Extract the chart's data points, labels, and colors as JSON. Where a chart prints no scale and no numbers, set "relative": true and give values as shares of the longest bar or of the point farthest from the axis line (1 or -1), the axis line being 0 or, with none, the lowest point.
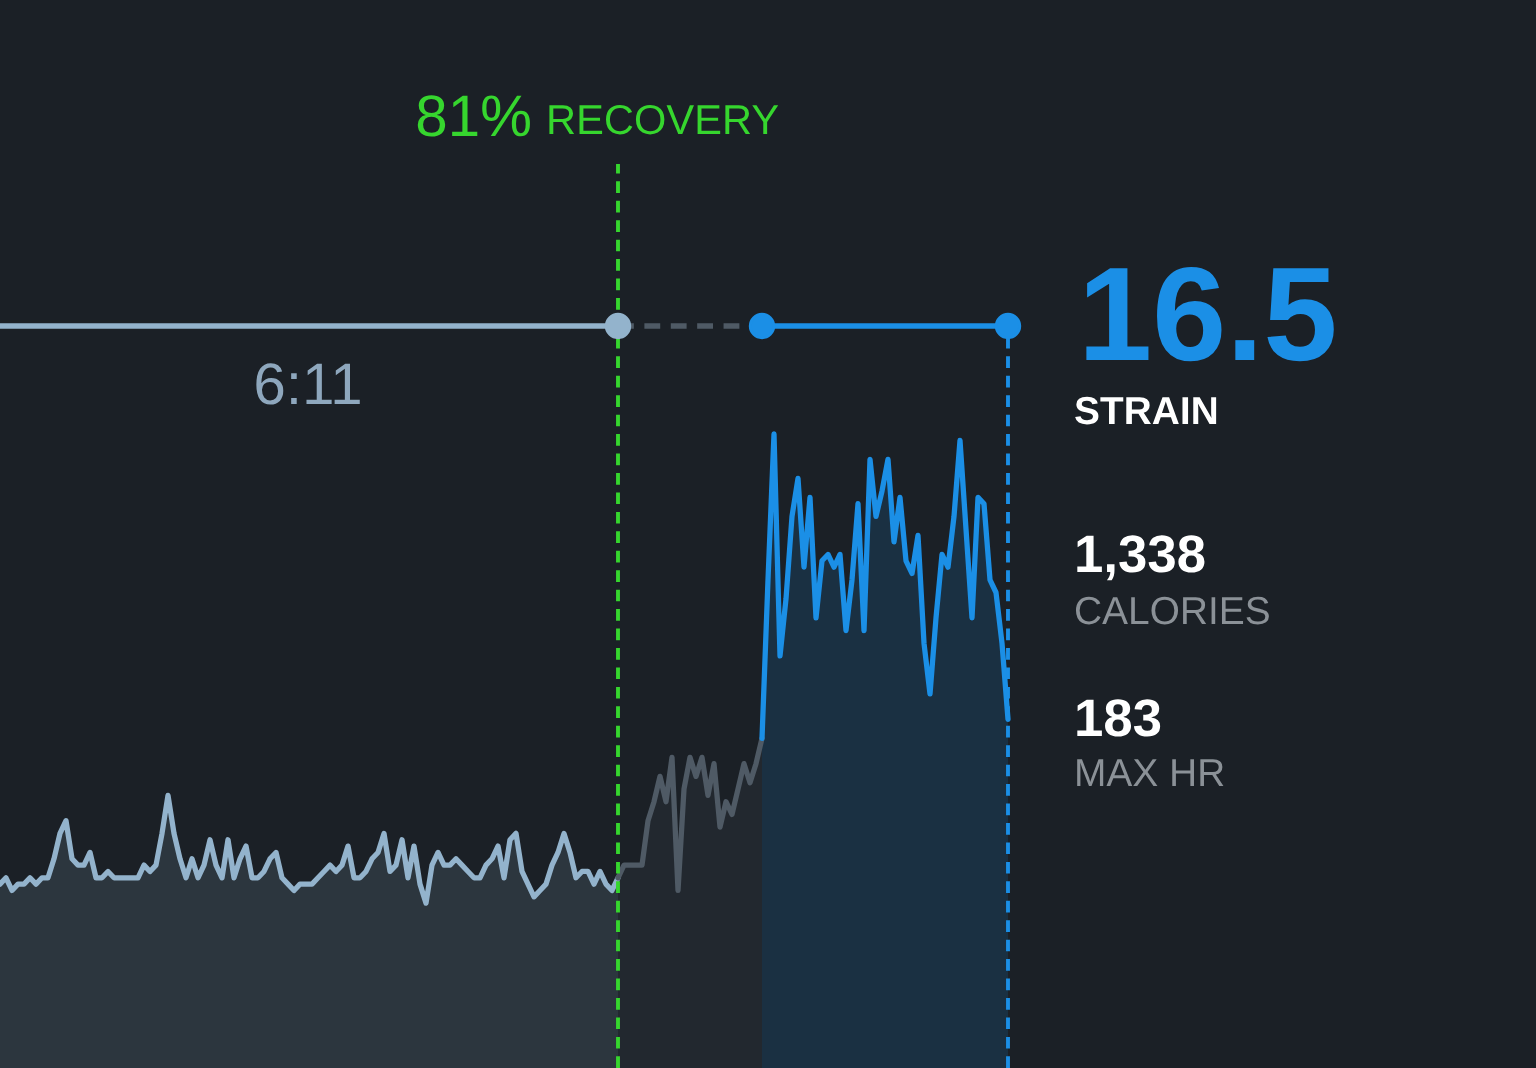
{
  "chart_data": {
    "type": "area",
    "relative": true,
    "categories": [
      null,
      null,
      null,
      null,
      null,
      null,
      null,
      null,
      null,
      null,
      null,
      null,
      null,
      null,
      null,
      null,
      null,
      null,
      null,
      null,
      null,
      null,
      null,
      null,
      null,
      null,
      null,
      null,
      null,
      null,
      null,
      null,
      null,
      null,
      null,
      null,
      null,
      null,
      null,
      null,
      null,
      null,
      null,
      null,
      null,
      null,
      null,
      null,
      null,
      null,
      null,
      null,
      null,
      null,
      null,
      null,
      null,
      null,
      null,
      null,
      null,
      null,
      null,
      null,
      null,
      null,
      null,
      null,
      null,
      null,
      null,
      null,
      null,
      null,
      null,
      null,
      null,
      null,
      null,
      null,
      null,
      null,
      null,
      null,
      null,
      null,
      null,
      null,
      null,
      null,
      null,
      null,
      null,
      null,
      null,
      null,
      null,
      null,
      null,
      null,
      null,
      null,
      null,
      null,
      null,
      null,
      null,
      null,
      null,
      null,
      null,
      null,
      null,
      null,
      null,
      null,
      null,
      null,
      null,
      null,
      null,
      null,
      null,
      null,
      null,
      null,
      null,
      null,
      null,
      null,
      null,
      null,
      null,
      null,
      null,
      null,
      null,
      null,
      null,
      null,
      null,
      null,
      null,
      null,
      null,
      null,
      null,
      null,
      null,
      null,
      null,
      null,
      null,
      null,
      null,
      null,
      null,
      null,
      null,
      null,
      null,
      null,
      null,
      null,
      null,
      null,
      null,
      null,
      null
    ],
    "series": [
      {
        "color": "#93b3cc",
        "values": [
          0.29,
          0.3,
          0.28,
          0.29,
          0.29,
          0.3,
          0.29,
          0.3,
          0.3,
          0.33,
          0.37,
          0.39,
          0.33,
          0.32,
          0.32,
          0.34,
          0.3,
          0.3,
          0.31,
          0.3,
          0.3,
          0.3,
          0.3,
          0.3,
          0.32,
          0.31,
          0.32,
          0.37,
          0.43,
          0.37,
          0.33,
          0.3,
          0.33,
          0.3,
          0.32,
          0.36,
          0.32,
          0.3,
          0.36,
          0.3,
          0.33,
          0.35,
          0.3,
          0.3,
          0.31,
          0.33,
          0.34,
          0.3,
          0.29,
          0.28,
          0.29,
          0.29,
          0.29,
          0.3,
          0.31,
          0.32,
          0.31,
          0.32,
          0.35,
          0.3,
          0.3,
          0.31,
          0.33,
          0.34,
          0.37,
          0.31,
          0.32,
          0.36,
          0.3,
          0.35,
          0.29,
          0.26,
          0.32,
          0.34,
          0.32,
          0.32,
          0.33,
          0.32,
          0.31,
          0.3,
          0.3,
          0.32,
          0.33,
          0.35,
          0.3,
          0.36,
          0.37,
          0.31,
          0.29,
          0.27,
          0.28,
          0.29,
          0.32,
          0.34,
          0.37,
          0.34,
          0.3,
          0.31,
          0.31,
          0.29,
          0.31,
          0.29,
          0.28,
          0.3,
          null,
          null,
          null,
          null,
          null,
          null,
          null,
          null,
          null,
          null,
          null,
          null,
          null,
          null,
          null,
          null,
          null,
          null,
          null,
          null,
          null,
          null,
          null,
          null,
          null,
          null,
          null,
          null,
          null,
          null,
          null,
          null,
          null,
          null,
          null,
          null,
          null,
          null,
          null,
          null,
          null,
          null,
          null,
          null,
          null,
          null,
          null,
          null,
          null,
          null,
          null,
          null,
          null,
          null,
          null,
          null,
          null,
          null,
          null,
          null,
          null,
          null,
          null,
          null,
          null
        ]
      },
      {
        "color": "#4f5a65",
        "values": [
          null,
          null,
          null,
          null,
          null,
          null,
          null,
          null,
          null,
          null,
          null,
          null,
          null,
          null,
          null,
          null,
          null,
          null,
          null,
          null,
          null,
          null,
          null,
          null,
          null,
          null,
          null,
          null,
          null,
          null,
          null,
          null,
          null,
          null,
          null,
          null,
          null,
          null,
          null,
          null,
          null,
          null,
          null,
          null,
          null,
          null,
          null,
          null,
          null,
          null,
          null,
          null,
          null,
          null,
          null,
          null,
          null,
          null,
          null,
          null,
          null,
          null,
          null,
          null,
          null,
          null,
          null,
          null,
          null,
          null,
          null,
          null,
          null,
          null,
          null,
          null,
          null,
          null,
          null,
          null,
          null,
          null,
          null,
          null,
          null,
          null,
          null,
          null,
          null,
          null,
          null,
          null,
          null,
          null,
          null,
          null,
          null,
          null,
          null,
          null,
          null,
          null,
          null,
          0.3,
          0.32,
          0.32,
          0.32,
          0.32,
          0.39,
          0.42,
          0.46,
          0.42,
          0.49,
          0.28,
          0.44,
          0.49,
          0.46,
          0.49,
          0.43,
          0.48,
          0.38,
          0.42,
          0.4,
          0.44,
          0.48,
          0.45,
          0.48,
          0.52,
          null,
          null,
          null,
          null,
          null,
          null,
          null,
          null,
          null,
          null,
          null,
          null,
          null,
          null,
          null,
          null,
          null,
          null,
          null,
          null,
          null,
          null,
          null,
          null,
          null,
          null,
          null,
          null,
          null,
          null,
          null,
          null,
          null,
          null,
          null,
          null,
          null,
          null,
          null,
          null,
          null
        ]
      },
      {
        "color": "#1b8fe6",
        "values": [
          null,
          null,
          null,
          null,
          null,
          null,
          null,
          null,
          null,
          null,
          null,
          null,
          null,
          null,
          null,
          null,
          null,
          null,
          null,
          null,
          null,
          null,
          null,
          null,
          null,
          null,
          null,
          null,
          null,
          null,
          null,
          null,
          null,
          null,
          null,
          null,
          null,
          null,
          null,
          null,
          null,
          null,
          null,
          null,
          null,
          null,
          null,
          null,
          null,
          null,
          null,
          null,
          null,
          null,
          null,
          null,
          null,
          null,
          null,
          null,
          null,
          null,
          null,
          null,
          null,
          null,
          null,
          null,
          null,
          null,
          null,
          null,
          null,
          null,
          null,
          null,
          null,
          null,
          null,
          null,
          null,
          null,
          null,
          null,
          null,
          null,
          null,
          null,
          null,
          null,
          null,
          null,
          null,
          null,
          null,
          null,
          null,
          null,
          null,
          null,
          null,
          null,
          null,
          null,
          null,
          null,
          null,
          null,
          null,
          null,
          null,
          null,
          null,
          null,
          null,
          null,
          null,
          null,
          null,
          null,
          null,
          null,
          null,
          null,
          null,
          null,
          null,
          0.52,
          0.77,
          1.0,
          0.65,
          0.74,
          0.87,
          0.93,
          0.79,
          0.9,
          0.71,
          0.8,
          0.81,
          0.79,
          0.81,
          0.69,
          0.77,
          0.89,
          0.69,
          0.96,
          0.87,
          0.91,
          0.96,
          0.83,
          0.9,
          0.8,
          0.78,
          0.84,
          0.67,
          0.59,
          0.71,
          0.81,
          0.79,
          0.87,
          0.99,
          0.85,
          0.71,
          0.9,
          0.89,
          0.77,
          0.75,
          0.67,
          0.55
        ]
      }
    ],
    "annotations": [
      "81% RECOVERY",
      "6:11",
      "16.5",
      "STRAIN",
      "1,338",
      "CALORIES",
      "183",
      "MAX HR"
    ]
  }
}
